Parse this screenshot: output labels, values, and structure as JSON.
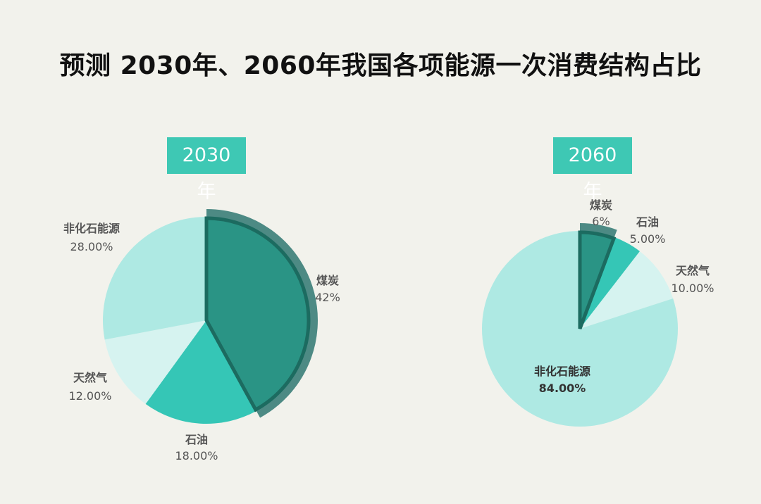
{
  "title": "预测 2030年、2060年我国各项能源一次消费结构占比",
  "colors": {
    "background": "#f2f2ec",
    "badge": "#3ec8b4",
    "coal": "#2a9485",
    "coal_outline": "#1c6b60",
    "coal_highlight": "#4d8a84",
    "oil": "#35c6b6",
    "gas": "#d6f3f0",
    "non_fossil": "#aee9e3"
  },
  "chart_data": [
    {
      "type": "pie",
      "title": "2030年",
      "slices": [
        {
          "name": "煤炭",
          "value": 42,
          "value_label": "42%",
          "highlighted": true
        },
        {
          "name": "石油",
          "value": 18,
          "value_label": "18.00%"
        },
        {
          "name": "天然气",
          "value": 12,
          "value_label": "12.00%"
        },
        {
          "name": "非化石能源",
          "value": 28,
          "value_label": "28.00%"
        }
      ]
    },
    {
      "type": "pie",
      "title": "2060年",
      "slices": [
        {
          "name": "煤炭",
          "value": 6,
          "value_label": "6%",
          "highlighted": true
        },
        {
          "name": "石油",
          "value": 5,
          "value_label": "5.00%"
        },
        {
          "name": "天然气",
          "value": 10,
          "value_label": "10.00%"
        },
        {
          "name": "非化石能源",
          "value": 84,
          "value_label": "84.00%"
        }
      ]
    }
  ]
}
